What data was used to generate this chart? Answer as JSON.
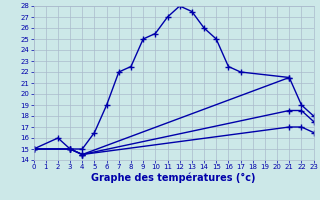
{
  "title": "Graphe des températures (°c)",
  "bg_color": "#cce8e8",
  "grid_color": "#aabbcc",
  "line_color": "#0000aa",
  "xlim": [
    0,
    23
  ],
  "ylim": [
    14,
    28
  ],
  "xticks": [
    0,
    1,
    2,
    3,
    4,
    5,
    6,
    7,
    8,
    9,
    10,
    11,
    12,
    13,
    14,
    15,
    16,
    17,
    18,
    19,
    20,
    21,
    22,
    23
  ],
  "yticks": [
    14,
    15,
    16,
    17,
    18,
    19,
    20,
    21,
    22,
    23,
    24,
    25,
    26,
    27,
    28
  ],
  "series": [
    {
      "x": [
        0,
        2,
        3,
        4,
        5,
        6,
        7,
        8,
        9,
        10,
        11,
        12,
        13,
        14,
        15,
        16,
        17,
        21
      ],
      "y": [
        15,
        16,
        15,
        15,
        16.5,
        19.0,
        22.0,
        22.5,
        25.0,
        25.5,
        27.0,
        28.0,
        27.5,
        26.0,
        25.0,
        22.5,
        22.0,
        21.5
      ]
    },
    {
      "x": [
        0,
        3,
        4,
        21,
        22,
        23
      ],
      "y": [
        15,
        15,
        14.5,
        21.5,
        19.0,
        18.0
      ]
    },
    {
      "x": [
        0,
        3,
        4,
        21,
        22,
        23
      ],
      "y": [
        15,
        15,
        14.5,
        18.5,
        18.5,
        17.5
      ]
    },
    {
      "x": [
        0,
        3,
        4,
        21,
        22,
        23
      ],
      "y": [
        15,
        15,
        14.5,
        17.0,
        17.0,
        16.5
      ]
    }
  ]
}
